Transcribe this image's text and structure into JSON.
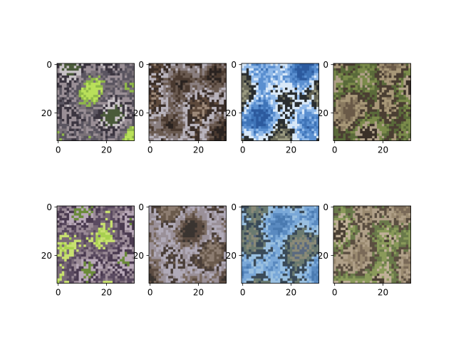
{
  "chart_data": [
    {
      "type": "image",
      "grid": false,
      "row": 1,
      "col": 1,
      "xlim": [
        -0.5,
        31.5
      ],
      "ylim": [
        31.5,
        -0.5
      ],
      "xticks": [
        0,
        20
      ],
      "yticks": [
        0,
        20
      ],
      "xtick_labels": [
        "0",
        "20"
      ],
      "ytick_labels": [
        "0",
        "20"
      ],
      "content": "pixelated image: bird/animal head on green grass",
      "palette": [
        "#b9e05a",
        "#8fb84a",
        "#7a7278",
        "#5a5560",
        "#9a8f96",
        "#3b3540",
        "#c8c2c6",
        "#4a5a3a"
      ]
    },
    {
      "type": "image",
      "grid": false,
      "row": 1,
      "col": 2,
      "xlim": [
        -0.5,
        31.5
      ],
      "ylim": [
        31.5,
        -0.5
      ],
      "xticks": [
        0,
        20
      ],
      "yticks": [
        0,
        20
      ],
      "xtick_labels": [
        "0",
        "20"
      ],
      "ytick_labels": [
        "0",
        "20"
      ],
      "content": "pixelated image: small animal on dark background",
      "palette": [
        "#2a2320",
        "#4a3a30",
        "#6a5a50",
        "#8a7f80",
        "#b8b3bc",
        "#3a2e28",
        "#5e4a3c",
        "#9c8878"
      ]
    },
    {
      "type": "image",
      "grid": false,
      "row": 1,
      "col": 3,
      "xlim": [
        -0.5,
        31.5
      ],
      "ylim": [
        31.5,
        -0.5
      ],
      "xticks": [
        0,
        20
      ],
      "yticks": [
        0,
        20
      ],
      "xtick_labels": [
        "0",
        "20"
      ],
      "ytick_labels": [
        "0",
        "20"
      ],
      "content": "pixelated image: airplane against blue sky",
      "palette": [
        "#2c5a9e",
        "#3f74b8",
        "#5a8fd0",
        "#8fb8e8",
        "#d8e8f8",
        "#2a2e30",
        "#6a6a5a",
        "#9a9a80"
      ]
    },
    {
      "type": "image",
      "grid": false,
      "row": 1,
      "col": 4,
      "xlim": [
        -0.5,
        31.5
      ],
      "ylim": [
        31.5,
        -0.5
      ],
      "xticks": [
        0,
        20
      ],
      "yticks": [
        0,
        20
      ],
      "xtick_labels": [
        "0",
        "20"
      ],
      "ytick_labels": [
        "0",
        "20"
      ],
      "content": "pixelated image: frog on brown/green ground",
      "palette": [
        "#6a5a48",
        "#8a7a60",
        "#a89878",
        "#4a3e32",
        "#5a6a3a",
        "#7a8a4a",
        "#b0a088",
        "#3a3028"
      ]
    },
    {
      "type": "image",
      "grid": false,
      "row": 2,
      "col": 1,
      "xlim": [
        -0.5,
        31.5
      ],
      "ylim": [
        31.5,
        -0.5
      ],
      "xticks": [
        0,
        20
      ],
      "yticks": [
        0,
        20
      ],
      "xtick_labels": [
        "0",
        "20"
      ],
      "ytick_labels": [
        "0",
        "20"
      ],
      "content": "pixelated reconstruction: bird/animal on green grass",
      "palette": [
        "#a8d050",
        "#c8e070",
        "#7a6a78",
        "#5a4a60",
        "#9a8a96",
        "#4a3a50",
        "#b8a8b8",
        "#6a8a3a"
      ]
    },
    {
      "type": "image",
      "grid": false,
      "row": 2,
      "col": 2,
      "xlim": [
        -0.5,
        31.5
      ],
      "ylim": [
        31.5,
        -0.5
      ],
      "xticks": [
        0,
        20
      ],
      "yticks": [
        0,
        20
      ],
      "xtick_labels": [
        "0",
        "20"
      ],
      "ytick_labels": [
        "0",
        "20"
      ],
      "content": "pixelated reconstruction: small animal on dark background",
      "palette": [
        "#3a3430",
        "#5a4a40",
        "#7a6a60",
        "#9a9098",
        "#b0aab8",
        "#4a3e38",
        "#6a5a4c",
        "#8c7c70"
      ]
    },
    {
      "type": "image",
      "grid": false,
      "row": 2,
      "col": 3,
      "xlim": [
        -0.5,
        31.5
      ],
      "ylim": [
        31.5,
        -0.5
      ],
      "xticks": [
        0,
        20
      ],
      "yticks": [
        0,
        20
      ],
      "xtick_labels": [
        "0",
        "20"
      ],
      "ytick_labels": [
        "0",
        "20"
      ],
      "content": "pixelated reconstruction: blurred airplane on blue",
      "palette": [
        "#4a7ab0",
        "#5a8ac0",
        "#7aa8d8",
        "#9ac0e0",
        "#3a4a58",
        "#6a7a70",
        "#8a8a78",
        "#5a6a80"
      ]
    },
    {
      "type": "image",
      "grid": false,
      "row": 2,
      "col": 4,
      "xlim": [
        -0.5,
        31.5
      ],
      "ylim": [
        31.5,
        -0.5
      ],
      "xticks": [
        0,
        20
      ],
      "yticks": [
        0,
        20
      ],
      "xtick_labels": [
        "0",
        "20"
      ],
      "ytick_labels": [
        "0",
        "20"
      ],
      "content": "pixelated reconstruction: frog on brown ground",
      "palette": [
        "#7a6a58",
        "#9a8a70",
        "#b0a088",
        "#5a4e40",
        "#6a7a4a",
        "#8a9a5a",
        "#c0b098",
        "#4a4034"
      ]
    }
  ]
}
